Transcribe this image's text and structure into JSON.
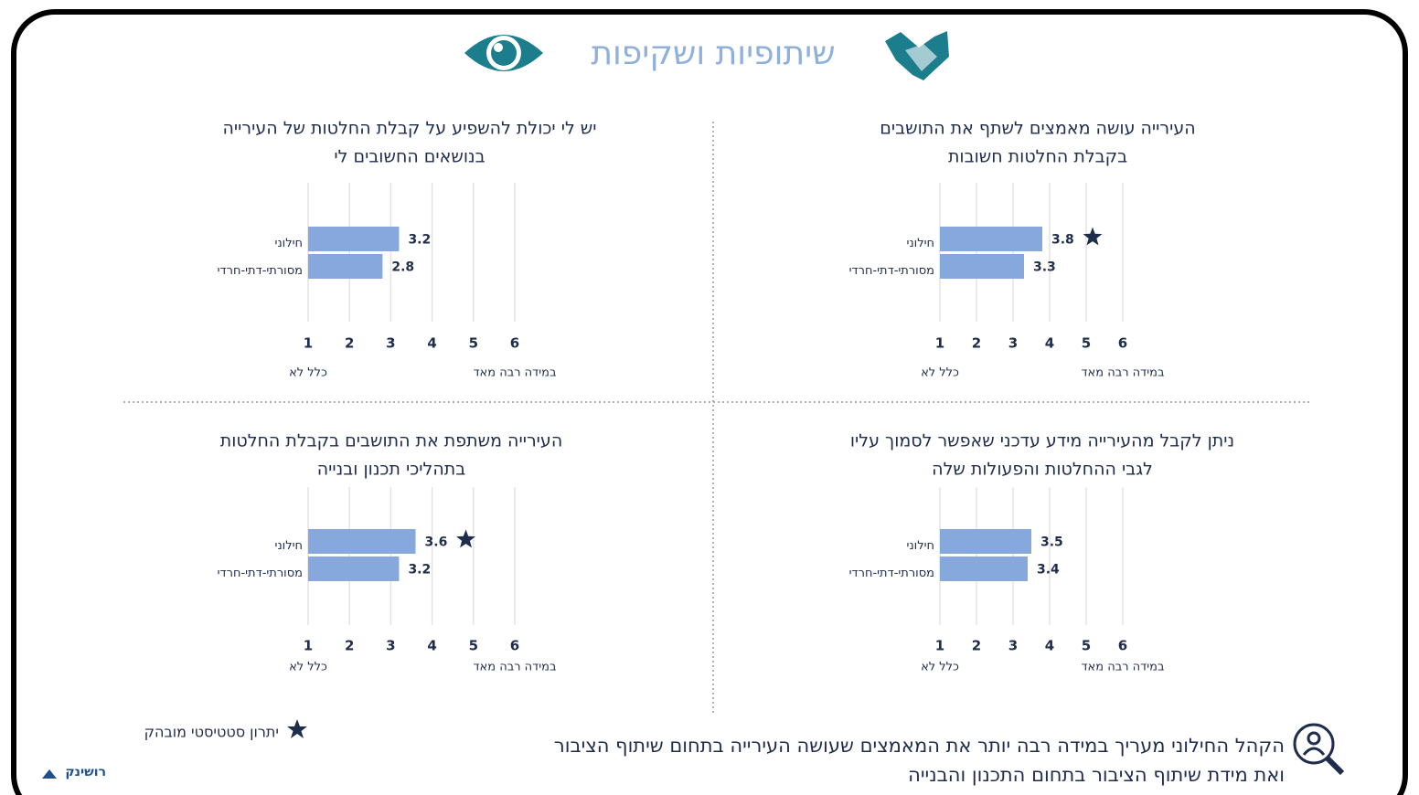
{
  "title": "שיתופיות ושקיפות",
  "chart_data": [
    {
      "type": "bar",
      "orientation": "horizontal",
      "title": [
        "העירייה עושה מאמצים לשתף את התושבים",
        "בקבלת החלטות חשובות"
      ],
      "categories": [
        "חילוני",
        "מסורתי-דתי-חרדי"
      ],
      "values": [
        3.8,
        3.3
      ],
      "significant": [
        true,
        false
      ],
      "color": "#86a8dc",
      "xlim": [
        1,
        6
      ],
      "xticks": [
        1,
        2,
        3,
        4,
        5,
        6
      ],
      "grid": true,
      "low_label": "כלל לא",
      "high_label": "במידה רבה מאד"
    },
    {
      "type": "bar",
      "orientation": "horizontal",
      "title": [
        "יש לי יכולת להשפיע על קבלת החלטות של העירייה",
        "בנושאים החשובים לי"
      ],
      "categories": [
        "חילוני",
        "מסורתי-דתי-חרדי"
      ],
      "values": [
        3.2,
        2.8
      ],
      "significant": [
        false,
        false
      ],
      "color": "#86a8dc",
      "xlim": [
        1,
        6
      ],
      "xticks": [
        1,
        2,
        3,
        4,
        5,
        6
      ],
      "grid": true,
      "low_label": "כלל לא",
      "high_label": "במידה רבה מאד"
    },
    {
      "type": "bar",
      "orientation": "horizontal",
      "title": [
        "ניתן לקבל מהעירייה מידע עדכני שאפשר לסמוך עליו",
        "לגבי ההחלטות והפעולות שלה"
      ],
      "categories": [
        "חילוני",
        "מסורתי-דתי-חרדי"
      ],
      "values": [
        3.5,
        3.4
      ],
      "significant": [
        false,
        false
      ],
      "color": "#86a8dc",
      "xlim": [
        1,
        6
      ],
      "xticks": [
        1,
        2,
        3,
        4,
        5,
        6
      ],
      "grid": true,
      "low_label": "כלל לא",
      "high_label": "במידה רבה מאד"
    },
    {
      "type": "bar",
      "orientation": "horizontal",
      "title": [
        "העירייה משתפת את התושבים בקבלת החלטות",
        "בתהליכי תכנון ובנייה"
      ],
      "categories": [
        "חילוני",
        "מסורתי-דתי-חרדי"
      ],
      "values": [
        3.6,
        3.2
      ],
      "significant": [
        true,
        false
      ],
      "color": "#86a8dc",
      "xlim": [
        1,
        6
      ],
      "xticks": [
        1,
        2,
        3,
        4,
        5,
        6
      ],
      "grid": true,
      "low_label": "כלל לא",
      "high_label": "במידה רבה מאד"
    }
  ],
  "legend_note": "יתרון סטטיסטי מובהק",
  "footer": [
    "הקהל החילוני מעריך במידה רבה יותר את המאמצים שעושה העירייה בתחום שיתוף הציבור",
    "ואת מידת שיתוף הציבור בתחום התכנון והבנייה"
  ],
  "logo": "רושינק"
}
